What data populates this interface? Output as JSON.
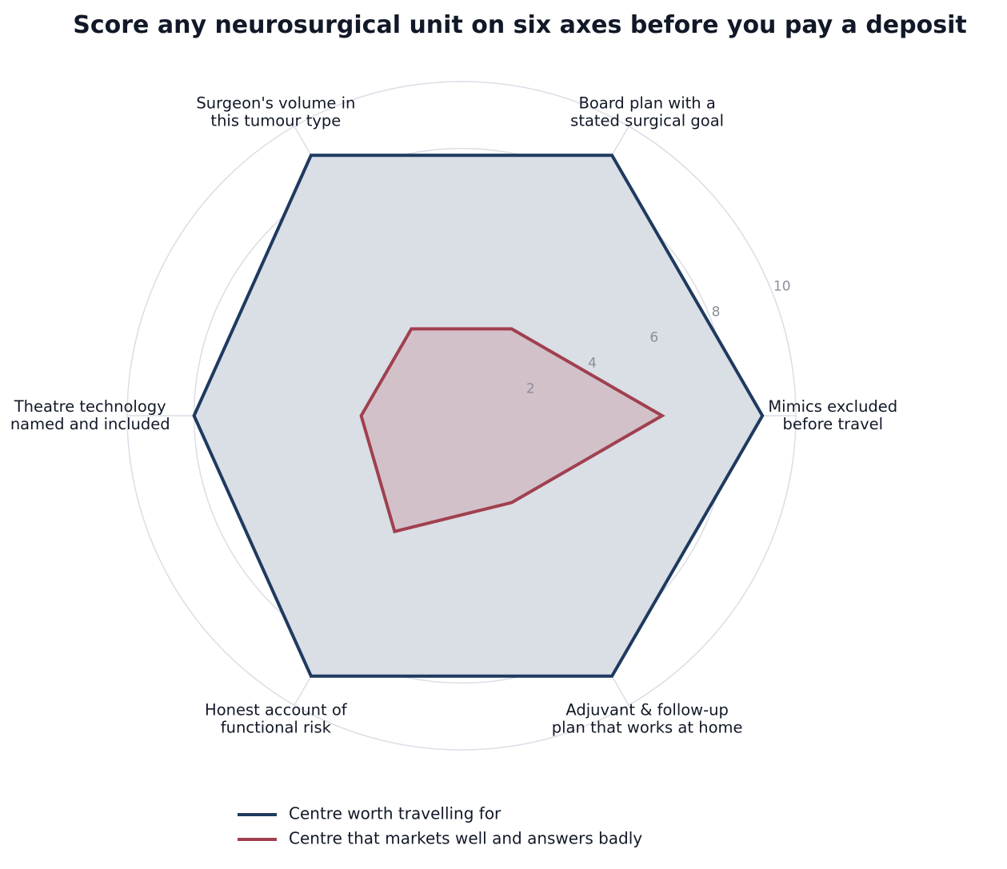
{
  "chart_data": {
    "type": "radar",
    "title": "Score any neurosurgical unit on six axes before you pay a deposit",
    "axes": [
      "Mimics excluded\nbefore travel",
      "Board plan with a\nstated surgical goal",
      "Surgeon's volume in\nthis tumour type",
      "Theatre technology\nnamed and included",
      "Honest account of\nfunctional risk",
      "Adjuvant & follow-up\nplan that works at home"
    ],
    "rlim": [
      0,
      10
    ],
    "ticks": [
      2,
      4,
      6,
      8,
      10
    ],
    "grid": true,
    "legend_position": "bottom",
    "series": [
      {
        "name": "Centre worth travelling for",
        "color": "#1f3a5f",
        "fill": "#dadee5",
        "values": [
          9,
          9,
          9,
          8,
          9,
          9
        ]
      },
      {
        "name": "Centre that markets well and answers badly",
        "color": "#a0404f",
        "fill": "#d3c1ca",
        "values": [
          6,
          3,
          3,
          3,
          4,
          3
        ]
      }
    ]
  }
}
